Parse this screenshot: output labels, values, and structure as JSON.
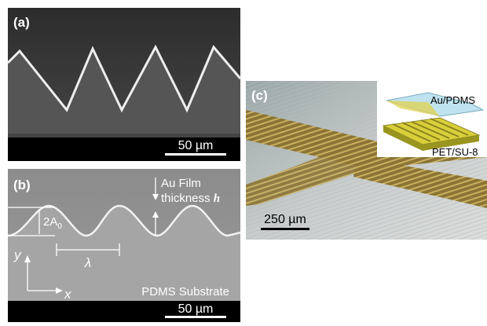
{
  "panels": [
    {
      "label": "(a)",
      "scale_bar": "50 µm"
    },
    {
      "label": "(b)",
      "film_label": "Au Film",
      "thickness_label": "thickness",
      "thickness_symbol": "h",
      "amplitude_label": "2A",
      "amplitude_subscript": "0",
      "wavelength_label": "λ",
      "y_axis": "y",
      "x_axis": "x",
      "substrate_label": "PDMS Substrate",
      "scale_bar": "50 µm"
    },
    {
      "label": "(c)",
      "top_layer": "Au/PDMS",
      "bottom_layer": "PET/SU-8",
      "scale_bar": "250 µm"
    }
  ]
}
